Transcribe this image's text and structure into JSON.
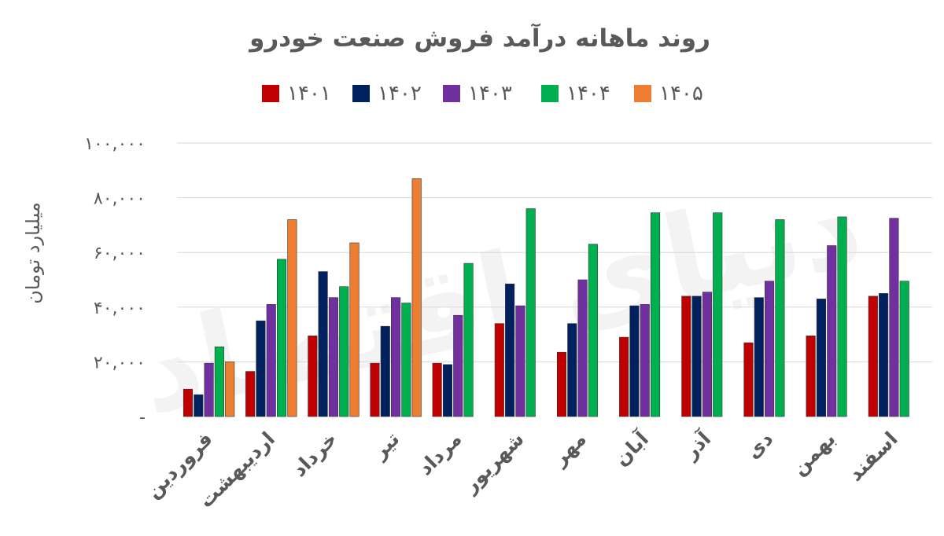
{
  "chart_data": {
    "type": "bar",
    "title": "روند ماهانه درآمد فروش صنعت خودرو",
    "ylabel": "میلیارد تومان",
    "xlabel": "",
    "ylim": [
      0,
      100000
    ],
    "yticks": [
      {
        "value": 0,
        "label": "-"
      },
      {
        "value": 20000,
        "label": "۲۰,۰۰۰"
      },
      {
        "value": 40000,
        "label": "۴۰,۰۰۰"
      },
      {
        "value": 60000,
        "label": "۶۰,۰۰۰"
      },
      {
        "value": 80000,
        "label": "۸۰,۰۰۰"
      },
      {
        "value": 100000,
        "label": "۱۰۰,۰۰۰"
      }
    ],
    "grid": true,
    "legend_position": "top",
    "categories": [
      "فروردین",
      "اردیبهشت",
      "خرداد",
      "تیر",
      "مرداد",
      "شهریور",
      "مهر",
      "آبان",
      "آذر",
      "دی",
      "بهمن",
      "اسفند"
    ],
    "series": [
      {
        "name": "۱۴۰۱",
        "color": "#c00000",
        "values": [
          10000,
          16500,
          29500,
          19500,
          19500,
          34000,
          23500,
          29000,
          44000,
          27000,
          29500,
          44000
        ]
      },
      {
        "name": "۱۴۰۲",
        "color": "#002060",
        "values": [
          8000,
          35000,
          53000,
          33000,
          19000,
          48500,
          34000,
          40500,
          44000,
          43500,
          43000,
          45000
        ]
      },
      {
        "name": "۱۴۰۳",
        "color": "#7030a0",
        "values": [
          19500,
          41000,
          43500,
          43500,
          37000,
          40500,
          50000,
          41000,
          45500,
          49500,
          62500,
          72500
        ]
      },
      {
        "name": "۱۴۰۴",
        "color": "#00b050",
        "values": [
          25500,
          57500,
          47500,
          41500,
          56000,
          76000,
          63000,
          74500,
          74500,
          72000,
          73000,
          49500
        ]
      },
      {
        "name": "۱۴۰۵",
        "color": "#ed7d31",
        "values": [
          20000,
          72000,
          63500,
          87000,
          null,
          null,
          null,
          null,
          null,
          null,
          null,
          null
        ]
      }
    ]
  }
}
